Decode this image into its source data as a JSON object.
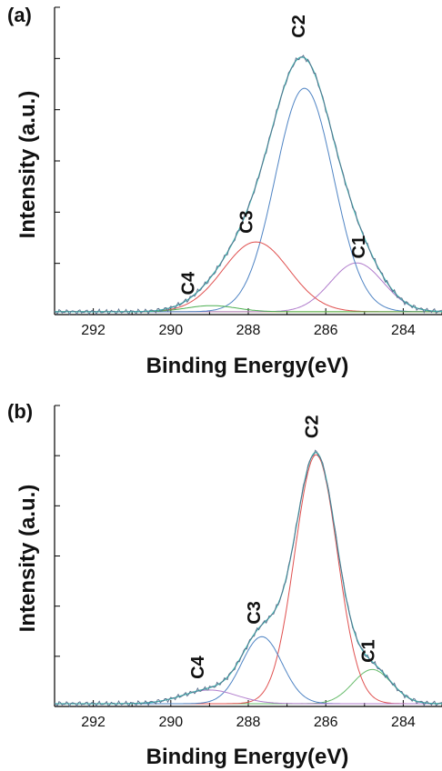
{
  "chart_data": [
    {
      "type": "line",
      "panel_label": "(a)",
      "xlabel": "Binding Energy(eV)",
      "ylabel": "Intensity (a.u.)",
      "xlim": [
        293,
        283
      ],
      "x_reversed": true,
      "x_ticks": [
        292,
        290,
        288,
        286,
        284
      ],
      "ylim": [
        0,
        1.1
      ],
      "y_tick_labels_shown": false,
      "baseline": 0.01,
      "components": [
        {
          "label": "C1",
          "center": 285.2,
          "height": 0.175,
          "sigma": 0.68,
          "color": "#b07ccc"
        },
        {
          "label": "C2",
          "center": 286.55,
          "height": 0.8,
          "sigma": 0.75,
          "color": "#4f84c4"
        },
        {
          "label": "C3",
          "center": 287.8,
          "height": 0.25,
          "sigma": 0.85,
          "color": "#e0504f"
        },
        {
          "label": "C4",
          "center": 288.95,
          "height": 0.022,
          "sigma": 0.65,
          "color": "#4caf50"
        }
      ],
      "envelope_color": "#3cb8b0",
      "raw_color": "#5a6e8c",
      "baseline_color": "#c8b020",
      "peak_labels": [
        {
          "text": "C1",
          "x": 285.0,
          "y": 0.2
        },
        {
          "text": "C2",
          "x": 286.55,
          "y": 0.99
        },
        {
          "text": "C3",
          "x": 287.9,
          "y": 0.29
        },
        {
          "text": "C4",
          "x": 289.4,
          "y": 0.07
        }
      ]
    },
    {
      "type": "line",
      "panel_label": "(b)",
      "xlabel": "Binding Energy(eV)",
      "ylabel": "Intensity (a.u.)",
      "xlim": [
        293,
        283
      ],
      "x_reversed": true,
      "x_ticks": [
        292,
        290,
        288,
        286,
        284
      ],
      "ylim": [
        0,
        1.1
      ],
      "y_tick_labels_shown": false,
      "baseline": 0.01,
      "components": [
        {
          "label": "C1",
          "center": 284.8,
          "height": 0.125,
          "sigma": 0.5,
          "color": "#66bb6a"
        },
        {
          "label": "C2",
          "center": 286.25,
          "height": 0.91,
          "sigma": 0.55,
          "color": "#e0504f"
        },
        {
          "label": "C3",
          "center": 287.65,
          "height": 0.245,
          "sigma": 0.52,
          "color": "#4f84c4"
        },
        {
          "label": "C4",
          "center": 289.0,
          "height": 0.05,
          "sigma": 0.7,
          "color": "#b07ccc"
        }
      ],
      "envelope_color": "#3cb8b0",
      "raw_color": "#5a6e8c",
      "baseline_color": "#c8b020",
      "peak_labels": [
        {
          "text": "C1",
          "x": 284.75,
          "y": 0.16
        },
        {
          "text": "C2",
          "x": 286.2,
          "y": 0.98
        },
        {
          "text": "C3",
          "x": 287.7,
          "y": 0.3
        },
        {
          "text": "C4",
          "x": 289.15,
          "y": 0.1
        }
      ]
    }
  ]
}
